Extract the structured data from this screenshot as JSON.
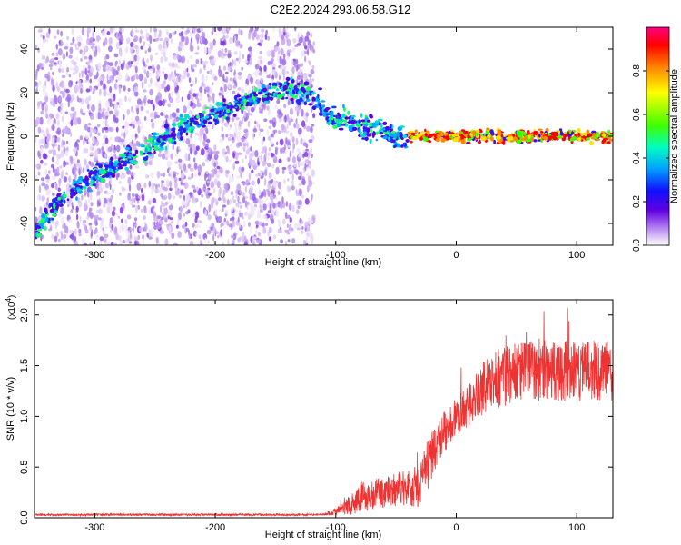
{
  "title": "C2E2.2024.293.06.58.G12",
  "chart_data": [
    {
      "type": "heatmap",
      "xlabel": "Height of straight line (km)",
      "ylabel": "Frequency (Hz)",
      "xlim": [
        -350,
        130
      ],
      "ylim": [
        -50,
        50
      ],
      "xticks": [
        -300,
        -200,
        -100,
        0,
        100
      ],
      "yticks": [
        -40,
        -20,
        0,
        20,
        40
      ],
      "noise_region_x": [
        -350,
        -118
      ],
      "signal_track": {
        "x": [
          -350,
          -330,
          -300,
          -260,
          -230,
          -200,
          -170,
          -150,
          -135,
          -120,
          -105,
          -95,
          -80,
          -65,
          -50,
          -40,
          0,
          130
        ],
        "y": [
          -45,
          -30,
          -18,
          -7,
          3,
          10,
          18,
          20,
          21,
          19,
          10,
          7,
          4,
          3,
          0,
          0,
          0,
          0
        ]
      },
      "colorbar": {
        "label": "Normalized spectral amplitude",
        "ticks": [
          0.0,
          0.2,
          0.4,
          0.6,
          0.8
        ],
        "range": [
          0,
          1
        ],
        "colormap": [
          "#ffffff",
          "#d9c2f5",
          "#a060f0",
          "#6000e0",
          "#1010ff",
          "#00a0ff",
          "#00ffc0",
          "#40ff00",
          "#ffff00",
          "#ff8000",
          "#ff0000",
          "#ff0080"
        ]
      }
    },
    {
      "type": "line",
      "xlabel": "Height of straight line (km)",
      "ylabel": "SNR (10 * v/v)",
      "scale_label": "(x10",
      "scale_exp": "4",
      "scale_close": ")",
      "xlim": [
        -350,
        130
      ],
      "ylim": [
        0,
        2.15
      ],
      "xticks": [
        -300,
        -200,
        -100,
        0,
        100
      ],
      "yticks": [
        "0.0",
        "0.5",
        "1.0",
        "1.5",
        "2.0"
      ],
      "color": "#ee3333",
      "profile": {
        "x": [
          -350,
          -200,
          -110,
          -95,
          -90,
          -80,
          -60,
          -40,
          -30,
          -25,
          -20,
          -17,
          -10,
          0,
          10,
          20,
          30,
          40,
          60,
          80,
          100,
          130
        ],
        "mean": [
          0.03,
          0.03,
          0.03,
          0.08,
          0.12,
          0.2,
          0.25,
          0.3,
          0.3,
          0.5,
          0.6,
          0.7,
          0.85,
          1.0,
          1.1,
          1.25,
          1.35,
          1.4,
          1.45,
          1.45,
          1.45,
          1.45
        ],
        "spread": [
          0.01,
          0.01,
          0.01,
          0.05,
          0.1,
          0.15,
          0.15,
          0.2,
          0.2,
          0.25,
          0.25,
          0.2,
          0.2,
          0.2,
          0.2,
          0.25,
          0.3,
          0.3,
          0.3,
          0.3,
          0.3,
          0.3
        ]
      }
    }
  ]
}
